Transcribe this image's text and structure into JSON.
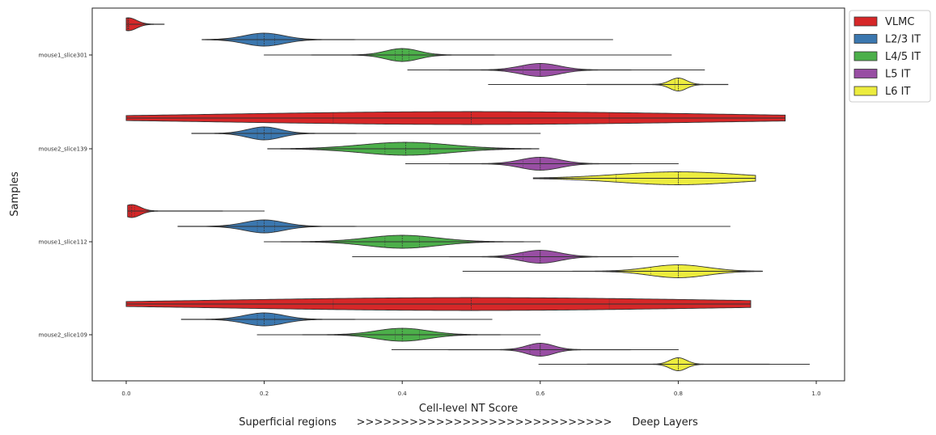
{
  "chart_data": {
    "type": "violin",
    "orientation": "horizontal",
    "xlabel": "Cell-level NT Score",
    "ylabel": "Samples",
    "annotation": "Superficial regions      >>>>>>>>>>>>>>>>>>>>>>>>>>>>>      Deep Layers",
    "xlim": [
      -0.05,
      1.04
    ],
    "x_ticks": [
      "0.0",
      "0.2",
      "0.4",
      "0.6",
      "0.8",
      "1.0"
    ],
    "legend_position": "outside-top-right",
    "categories": [
      "mouse1_slice301",
      "mouse2_slice139",
      "mouse1_slice112",
      "mouse2_slice109"
    ],
    "series": [
      {
        "name": "VLMC",
        "color": "#d62728",
        "violins": [
          {
            "min": 0.0,
            "max": 0.055,
            "median": 0.003,
            "q1": 0.002,
            "q3": 0.004
          },
          {
            "min": 0.0,
            "max": 0.955,
            "median": 0.5,
            "q1": 0.3,
            "q3": 0.7
          },
          {
            "min": 0.002,
            "max": 0.2,
            "median": 0.008,
            "q1": 0.005,
            "q3": 0.012
          },
          {
            "min": 0.0,
            "max": 0.905,
            "median": 0.5,
            "q1": 0.3,
            "q3": 0.7
          }
        ]
      },
      {
        "name": "L2/3 IT",
        "color": "#3b77af",
        "violins": [
          {
            "min": 0.11,
            "max": 0.705,
            "median": 0.2,
            "q1": 0.19,
            "q3": 0.215
          },
          {
            "min": 0.095,
            "max": 0.6,
            "median": 0.2,
            "q1": 0.19,
            "q3": 0.21
          },
          {
            "min": 0.075,
            "max": 0.875,
            "median": 0.2,
            "q1": 0.19,
            "q3": 0.215
          },
          {
            "min": 0.08,
            "max": 0.53,
            "median": 0.2,
            "q1": 0.19,
            "q3": 0.215
          }
        ]
      },
      {
        "name": "L4/5 IT",
        "color": "#4caf4a",
        "violins": [
          {
            "min": 0.2,
            "max": 0.79,
            "median": 0.4,
            "q1": 0.39,
            "q3": 0.41
          },
          {
            "min": 0.205,
            "max": 0.598,
            "median": 0.405,
            "q1": 0.375,
            "q3": 0.44
          },
          {
            "min": 0.2,
            "max": 0.6,
            "median": 0.4,
            "q1": 0.375,
            "q3": 0.425
          },
          {
            "min": 0.19,
            "max": 0.6,
            "median": 0.4,
            "q1": 0.39,
            "q3": 0.425
          }
        ]
      },
      {
        "name": "L5 IT",
        "color": "#984ea3",
        "violins": [
          {
            "min": 0.408,
            "max": 0.838,
            "median": 0.6,
            "q1": 0.575,
            "q3": 0.6
          },
          {
            "min": 0.405,
            "max": 0.8,
            "median": 0.6,
            "q1": 0.575,
            "q3": 0.6
          },
          {
            "min": 0.328,
            "max": 0.8,
            "median": 0.6,
            "q1": 0.575,
            "q3": 0.6
          },
          {
            "min": 0.385,
            "max": 0.8,
            "median": 0.6,
            "q1": 0.585,
            "q3": 0.6
          }
        ]
      },
      {
        "name": "L6 IT",
        "color": "#ecec3e",
        "violins": [
          {
            "min": 0.525,
            "max": 0.872,
            "median": 0.8,
            "q1": 0.795,
            "q3": 0.8
          },
          {
            "min": 0.59,
            "max": 0.912,
            "median": 0.8,
            "q1": 0.71,
            "q3": 0.8
          },
          {
            "min": 0.488,
            "max": 0.922,
            "median": 0.8,
            "q1": 0.76,
            "q3": 0.8
          },
          {
            "min": 0.598,
            "max": 0.99,
            "median": 0.8,
            "q1": 0.8,
            "q3": 0.8
          }
        ]
      }
    ]
  }
}
